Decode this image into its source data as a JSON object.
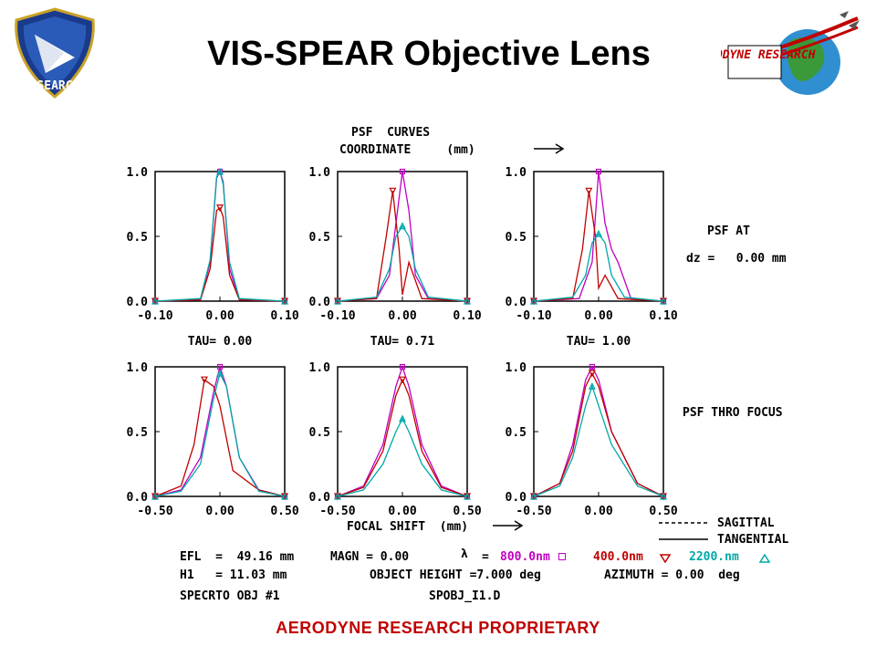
{
  "header": {
    "title": "VIS-SPEAR Objective Lens",
    "left_logo_text": "AIR FORCE RESEARCH LABORATORY",
    "right_logo_text": "AERODYNE RESEARCH"
  },
  "footer": {
    "text": "AERODYNE RESEARCH PROPRIETARY"
  },
  "plot_header": {
    "line1": "PSF  CURVES",
    "line2": "COORDINATE     (mm)"
  },
  "side_labels": {
    "psf_at": "PSF AT",
    "dz": "dz =   0.00 mm",
    "thro_focus": "PSF THRO FOCUS"
  },
  "top_x_tick_labels": [
    "-0.10",
    "0.00",
    "0.10"
  ],
  "bottom_x_tick_labels": [
    "-0.50",
    "0.00",
    "0.50"
  ],
  "y_tick_labels": [
    "1.0",
    "0.5",
    "0.0"
  ],
  "tau_labels": [
    "TAU= 0.00",
    "TAU= 0.71",
    "TAU= 1.00"
  ],
  "focal_shift_label": "FOCAL SHIFT  (mm)",
  "legend": {
    "sagittal": "SAGITTAL",
    "tangential": "TANGENTIAL"
  },
  "info": {
    "efl": "EFL  =  49.16 mm",
    "magn": "MAGN = 0.00",
    "h1": "H1   = 11.03 mm",
    "obj_height": "OBJECT HEIGHT =7.000 deg",
    "azimuth": "AZIMUTH = 0.00  deg",
    "spec": "SPECRTO OBJ #1",
    "file": "SPOBJ_I1.D",
    "lambda_eq": "=",
    "wl1": "800.0nm",
    "wl2": "400.0nm",
    "wl3": "2200.nm"
  },
  "colors": {
    "black": "#000000",
    "red": "#c00000",
    "magenta": "#c000c0",
    "cyan": "#00a8a8",
    "footer": "#c00000"
  },
  "chart_data": [
    {
      "type": "line",
      "panel": "TAU= 0.00",
      "xlim": [
        -0.1,
        0.1
      ],
      "ylim": [
        0,
        1
      ],
      "series": [
        {
          "name": "800.0nm",
          "x": [
            -0.1,
            -0.03,
            -0.015,
            -0.005,
            0,
            0.005,
            0.015,
            0.03,
            0.1
          ],
          "y": [
            0,
            0.01,
            0.3,
            0.95,
            1.0,
            0.92,
            0.25,
            0.01,
            0
          ]
        },
        {
          "name": "400.0nm",
          "x": [
            -0.1,
            -0.03,
            -0.015,
            -0.005,
            0,
            0.005,
            0.015,
            0.03,
            0.1
          ],
          "y": [
            0,
            0.01,
            0.25,
            0.7,
            0.72,
            0.65,
            0.2,
            0.01,
            0
          ]
        },
        {
          "name": "2200.nm",
          "x": [
            -0.1,
            -0.03,
            -0.015,
            -0.005,
            0,
            0.005,
            0.015,
            0.03,
            0.1
          ],
          "y": [
            0,
            0.02,
            0.32,
            0.96,
            1.0,
            0.9,
            0.3,
            0.02,
            0
          ]
        }
      ]
    },
    {
      "type": "line",
      "panel": "TAU= 0.71",
      "xlim": [
        -0.1,
        0.1
      ],
      "ylim": [
        0,
        1
      ],
      "series": [
        {
          "name": "800.0nm",
          "x": [
            -0.1,
            -0.04,
            -0.02,
            -0.01,
            0,
            0.01,
            0.02,
            0.04,
            0.1
          ],
          "y": [
            0,
            0.02,
            0.2,
            0.6,
            1.0,
            0.7,
            0.2,
            0.02,
            0
          ]
        },
        {
          "name": "400.0nm",
          "x": [
            -0.1,
            -0.04,
            -0.025,
            -0.015,
            -0.005,
            0,
            0.01,
            0.03,
            0.1
          ],
          "y": [
            0,
            0.02,
            0.5,
            0.85,
            0.4,
            0.05,
            0.3,
            0.02,
            0
          ]
        },
        {
          "name": "2200.nm",
          "x": [
            -0.1,
            -0.04,
            -0.02,
            -0.01,
            0,
            0.01,
            0.02,
            0.04,
            0.1
          ],
          "y": [
            0,
            0.03,
            0.25,
            0.5,
            0.58,
            0.5,
            0.25,
            0.03,
            0
          ]
        }
      ]
    },
    {
      "type": "line",
      "panel": "TAU= 1.00",
      "xlim": [
        -0.1,
        0.1
      ],
      "ylim": [
        0,
        1
      ],
      "series": [
        {
          "name": "800.0nm",
          "x": [
            -0.1,
            -0.03,
            -0.01,
            0,
            0.01,
            0.02,
            0.03,
            0.05,
            0.1
          ],
          "y": [
            0,
            0.02,
            0.3,
            1.0,
            0.6,
            0.4,
            0.3,
            0.02,
            0
          ]
        },
        {
          "name": "400.0nm",
          "x": [
            -0.1,
            -0.04,
            -0.025,
            -0.015,
            -0.005,
            0,
            0.01,
            0.03,
            0.1
          ],
          "y": [
            0,
            0.02,
            0.4,
            0.85,
            0.5,
            0.1,
            0.2,
            0.02,
            0
          ]
        },
        {
          "name": "2200.nm",
          "x": [
            -0.1,
            -0.04,
            -0.02,
            -0.01,
            0,
            0.01,
            0.02,
            0.04,
            0.1
          ],
          "y": [
            0,
            0.03,
            0.2,
            0.45,
            0.52,
            0.45,
            0.2,
            0.03,
            0
          ]
        }
      ]
    },
    {
      "type": "line",
      "panel": "PSF THRO FOCUS 1",
      "xlim": [
        -0.5,
        0.5
      ],
      "ylim": [
        0,
        1
      ],
      "series": [
        {
          "name": "800.0nm",
          "x": [
            -0.5,
            -0.3,
            -0.15,
            -0.05,
            0,
            0.05,
            0.15,
            0.3,
            0.5
          ],
          "y": [
            0,
            0.05,
            0.3,
            0.8,
            1.0,
            0.85,
            0.3,
            0.05,
            0
          ]
        },
        {
          "name": "400.0nm",
          "x": [
            -0.5,
            -0.3,
            -0.2,
            -0.12,
            -0.05,
            0,
            0.1,
            0.3,
            0.5
          ],
          "y": [
            0,
            0.08,
            0.4,
            0.9,
            0.85,
            0.7,
            0.2,
            0.05,
            0
          ]
        },
        {
          "name": "2200.nm",
          "x": [
            -0.5,
            -0.3,
            -0.15,
            -0.05,
            0,
            0.05,
            0.15,
            0.3,
            0.5
          ],
          "y": [
            0,
            0.04,
            0.25,
            0.75,
            0.95,
            0.85,
            0.3,
            0.04,
            0
          ]
        }
      ]
    },
    {
      "type": "line",
      "panel": "PSF THRO FOCUS 2",
      "xlim": [
        -0.5,
        0.5
      ],
      "ylim": [
        0,
        1
      ],
      "series": [
        {
          "name": "800.0nm",
          "x": [
            -0.5,
            -0.3,
            -0.15,
            -0.05,
            0,
            0.05,
            0.15,
            0.3,
            0.5
          ],
          "y": [
            0,
            0.08,
            0.4,
            0.85,
            1.0,
            0.85,
            0.4,
            0.08,
            0
          ]
        },
        {
          "name": "400.0nm",
          "x": [
            -0.5,
            -0.3,
            -0.15,
            -0.05,
            0,
            0.05,
            0.15,
            0.3,
            0.5
          ],
          "y": [
            0,
            0.07,
            0.35,
            0.78,
            0.9,
            0.78,
            0.35,
            0.07,
            0
          ]
        },
        {
          "name": "2200.nm",
          "x": [
            -0.5,
            -0.3,
            -0.15,
            -0.05,
            0,
            0.05,
            0.15,
            0.3,
            0.5
          ],
          "y": [
            0,
            0.05,
            0.25,
            0.5,
            0.6,
            0.5,
            0.25,
            0.05,
            0
          ]
        }
      ]
    },
    {
      "type": "line",
      "panel": "PSF THRO FOCUS 3",
      "xlim": [
        -0.5,
        0.5
      ],
      "ylim": [
        0,
        1
      ],
      "series": [
        {
          "name": "800.0nm",
          "x": [
            -0.5,
            -0.3,
            -0.2,
            -0.1,
            -0.05,
            0,
            0.1,
            0.3,
            0.5
          ],
          "y": [
            0,
            0.1,
            0.4,
            0.9,
            1.0,
            0.9,
            0.5,
            0.1,
            0
          ]
        },
        {
          "name": "400.0nm",
          "x": [
            -0.5,
            -0.3,
            -0.2,
            -0.1,
            -0.05,
            0,
            0.1,
            0.3,
            0.5
          ],
          "y": [
            0,
            0.1,
            0.35,
            0.85,
            0.95,
            0.85,
            0.5,
            0.1,
            0
          ]
        },
        {
          "name": "2200.nm",
          "x": [
            -0.5,
            -0.3,
            -0.2,
            -0.1,
            -0.05,
            0,
            0.1,
            0.3,
            0.5
          ],
          "y": [
            0,
            0.08,
            0.3,
            0.7,
            0.85,
            0.7,
            0.4,
            0.08,
            0
          ]
        }
      ]
    }
  ]
}
